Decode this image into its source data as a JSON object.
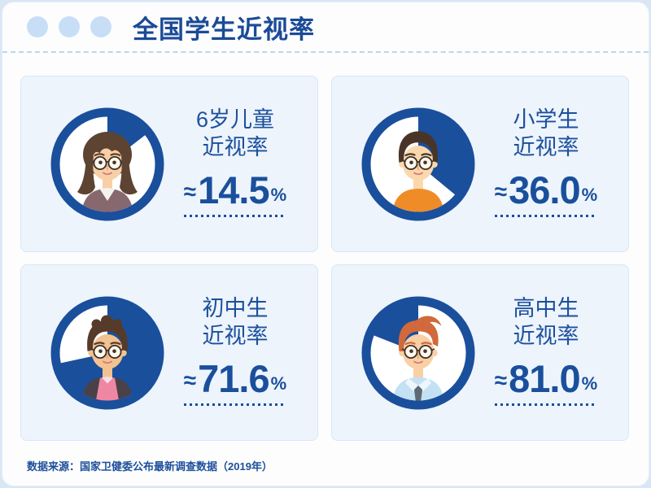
{
  "window": {
    "title": "全国学生近视率",
    "traffic_dots_count": 3
  },
  "theme": {
    "primary_blue": "#1a4f9c",
    "card_background": "#edf4fc",
    "card_border": "#d8e7f7",
    "dot_color": "#c8def6",
    "outer_background": "#d9e7f5",
    "divider_color": "#b9d6f0"
  },
  "cards": [
    {
      "label_line1": "6岁儿童",
      "label_line2": "近视率",
      "approx_symbol": "≈",
      "value": "14.5",
      "unit": "%",
      "pie": {
        "percent": 14.5,
        "wedge_from_deg": 0,
        "wedge_to_deg": 52.2
      },
      "avatar": {
        "type": "girl-long-hair",
        "hair": "#5d4331",
        "skin": "#f8cfa6",
        "shirt": "#87686e",
        "accent": "#f6f3ee"
      }
    },
    {
      "label_line1": "小学生",
      "label_line2": "近视率",
      "approx_symbol": "≈",
      "value": "36.0",
      "unit": "%",
      "pie": {
        "percent": 36.0,
        "wedge_from_deg": 0,
        "wedge_to_deg": 129.6
      },
      "avatar": {
        "type": "boy-short-hair",
        "hair": "#493528",
        "skin": "#fbd8ac",
        "shirt": "#ef8c28",
        "accent": "#ffffff"
      }
    },
    {
      "label_line1": "初中生",
      "label_line2": "近视率",
      "approx_symbol": "≈",
      "value": "71.6",
      "unit": "%",
      "pie": {
        "percent": 71.6,
        "wedge_from_deg": 0,
        "wedge_to_deg": 257.8
      },
      "avatar": {
        "type": "boy-quiff",
        "hair": "#563b2b",
        "skin": "#f2c291",
        "shirt": "#ee87a4",
        "accent": "#4a4148"
      }
    },
    {
      "label_line1": "高中生",
      "label_line2": "近视率",
      "approx_symbol": "≈",
      "value": "81.0",
      "unit": "%",
      "pie": {
        "percent": 81.0,
        "wedge_from_deg": 291.6,
        "wedge_to_deg": 360
      },
      "avatar": {
        "type": "boy-swept-hair",
        "hair": "#d2693c",
        "skin": "#f9cfa4",
        "shirt": "#c3e1f2",
        "accent": "#5d6a74"
      }
    }
  ],
  "footer": {
    "source_text": "数据来源：国家卫健委公布最新调查数据（2019年）"
  },
  "chart_data": {
    "type": "pie",
    "title": "全国学生近视率",
    "categories": [
      "6岁儿童",
      "小学生",
      "初中生",
      "高中生"
    ],
    "values": [
      14.5,
      36.0,
      71.6,
      81.0
    ],
    "unit": "%",
    "value_prefix": "≈",
    "note": "数据来源：国家卫健委公布最新调查数据（2019年）",
    "representation": "four donut-ring pie cards; dark-blue wedge drawn clockwise from 12 o'clock equals the myopia rate (last card drawn with complement wedge)"
  }
}
